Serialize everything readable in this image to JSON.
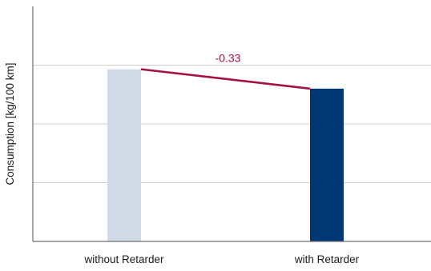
{
  "chart_data": {
    "type": "bar",
    "title": "",
    "xlabel": "",
    "ylabel": "Consumption [kg/100 km]",
    "categories": [
      "without Retarder",
      "with Retarder"
    ],
    "values": [
      2.93,
      2.6
    ],
    "colors": [
      "#d2dae8",
      "#003875"
    ],
    "ylim": [
      0,
      4.0
    ],
    "gridlines": [
      1,
      2,
      3
    ],
    "grid": true,
    "difference_annotation": {
      "label": "-0.33",
      "color": "#a51140"
    }
  }
}
